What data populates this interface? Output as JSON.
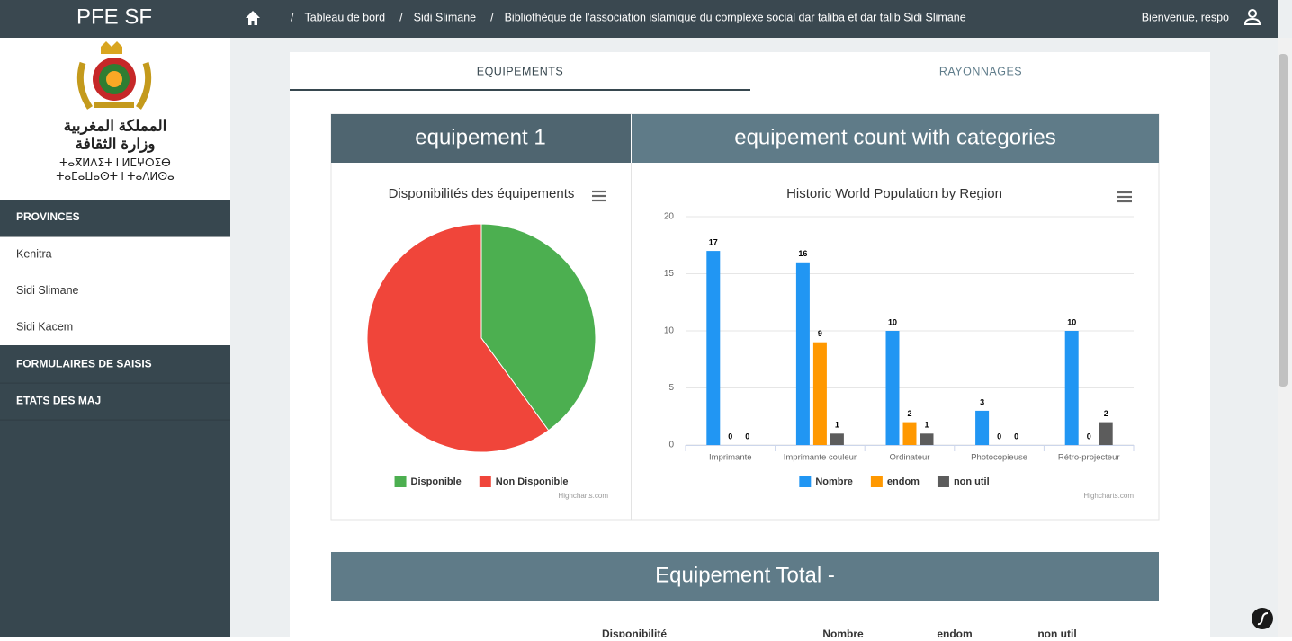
{
  "header": {
    "brand": "PFE SF",
    "separator": "/",
    "breadcrumb": [
      "Tableau de bord",
      "Sidi Slimane",
      "Bibliothèque de l'association islamique du complexe social dar taliba et dar talib Sidi Slimane"
    ],
    "welcome": "Bienvenue, respo"
  },
  "sidebar": {
    "logo_text": [
      "المملكة المغربية",
      "وزارة الثقافة",
      "ⵜⴰⴳⵍⴷⵉⵜ ⵏ ⵍⵎⵖⵔⵉⴱ",
      "ⵜⴰⵎⴰⵡⴰⵙⵜ ⵏ ⵜⴰⴷⵍⵙⴰ"
    ],
    "sections": [
      {
        "title": "PROVINCES",
        "items": [
          "Kenitra",
          "Sidi Slimane",
          "Sidi Kacem"
        ]
      },
      {
        "title": "FORMULAIRES DE SAISIS",
        "items": []
      },
      {
        "title": "ETATS DES MAJ",
        "items": []
      }
    ]
  },
  "tabs": [
    "EQUIPEMENTS",
    "RAYONNAGES"
  ],
  "cards": [
    "equipement 1",
    "equipement count with categories",
    "Equipement Total -"
  ],
  "table_headers": [
    "Disponibilité",
    "Nombre",
    "endom",
    "non util"
  ],
  "chart_data": [
    {
      "type": "pie",
      "title": "Disponibilités des équipements",
      "categories": [
        "Disponible",
        "Non Disponible"
      ],
      "values": [
        40,
        60
      ],
      "colors": [
        "#4caf50",
        "#f0453a"
      ],
      "credits": "Highcharts.com"
    },
    {
      "type": "bar",
      "title": "Historic World Population by Region",
      "categories": [
        "Imprimante",
        "Imprimante couleur",
        "Ordinateur",
        "Photocopieuse",
        "Rétro-projecteur"
      ],
      "series": [
        {
          "name": "Nombre",
          "color": "#2196f3",
          "values": [
            17,
            16,
            10,
            3,
            10
          ]
        },
        {
          "name": "endom",
          "color": "#ff9800",
          "values": [
            0,
            9,
            2,
            0,
            0
          ]
        },
        {
          "name": "non util",
          "color": "#5c5c5c",
          "values": [
            0,
            1,
            1,
            0,
            2
          ]
        }
      ],
      "ylim": [
        0,
        20
      ],
      "yticks": [
        0,
        5,
        10,
        15,
        20
      ],
      "grid": true,
      "data_labels": true,
      "credits": "Highcharts.com"
    }
  ]
}
